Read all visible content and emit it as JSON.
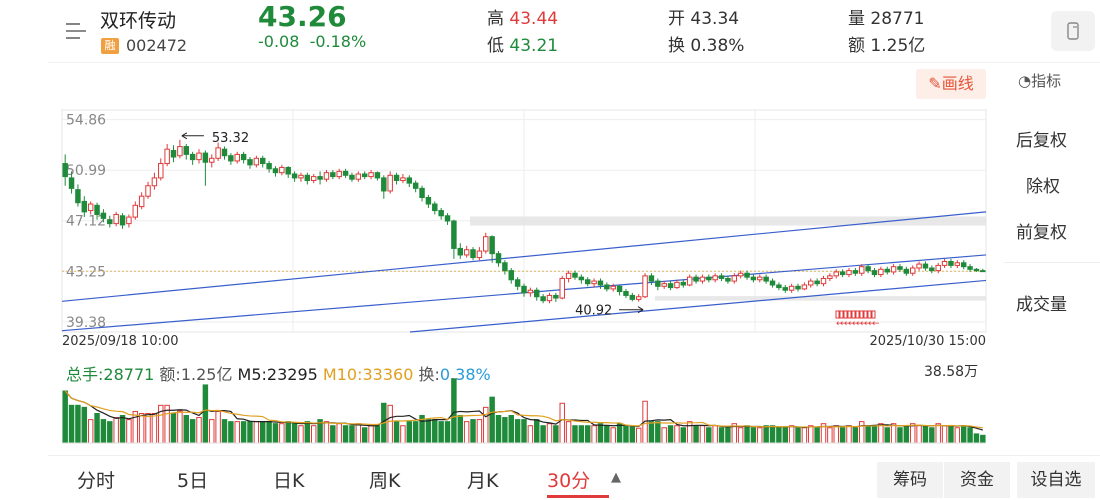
{
  "header": {
    "name": "双环传动",
    "badge": "融",
    "code": "002472",
    "price": "43.26",
    "change": "-0.08",
    "change_pct": "-0.18%",
    "high_label": "高",
    "high": "43.44",
    "low_label": "低",
    "low": "43.21",
    "open_label": "开",
    "open": "43.34",
    "turnover_label": "换",
    "turnover": "0.38%",
    "volume_label": "量",
    "volume": "28771",
    "amount_label": "额",
    "amount": "1.25亿"
  },
  "toolbar": {
    "draw_label": "画线",
    "indicator_label": "指标"
  },
  "side_menu": {
    "items": [
      "后复权",
      "除权",
      "前复权",
      "成交量"
    ],
    "active_index": 2
  },
  "volume_panel": {
    "total_label": "总手:",
    "total": "28771",
    "amount_label": "额:",
    "amount": "1.25亿",
    "m5_label": "M5:",
    "m5": "23295",
    "m10_label": "M10:",
    "m10": "33360",
    "turnover_label": "换:",
    "turnover": "0.38%",
    "max_label": "38.58万"
  },
  "tabs": [
    "分时",
    "5日",
    "日K",
    "周K",
    "月K",
    "30分"
  ],
  "active_tab": "30分",
  "footer_buttons": [
    "筹码",
    "资金",
    "设自选"
  ],
  "colors": {
    "up": "#e03a3a",
    "down": "#1f8a3a",
    "trend": "#3a5fcd",
    "m5": "#222222",
    "m10": "#e0a020"
  },
  "chart_data": {
    "type": "candlestick",
    "x_start_label": "2025/09/18 10:00",
    "x_end_label": "2025/10/30 15:00",
    "ylim": [
      38.6,
      55.6
    ],
    "y_ticks": [
      "54.86",
      "50.99",
      "47.12",
      "43.25",
      "39.38"
    ],
    "y_tick_values": [
      54.86,
      50.99,
      47.12,
      43.25,
      39.38
    ],
    "current_price_line": 43.25,
    "annotations": [
      {
        "label": "53.32",
        "index": 18,
        "value": 53.32,
        "arrow": "left"
      },
      {
        "label": "40.92",
        "index": 91,
        "value": 40.92,
        "arrow": "right"
      }
    ],
    "candles": [
      [
        51.5,
        50.5,
        52.2,
        49.8
      ],
      [
        50.4,
        49.6,
        50.9,
        49.2
      ],
      [
        49.5,
        48.5,
        49.9,
        48.2
      ],
      [
        48.6,
        47.8,
        49.0,
        47.4
      ],
      [
        47.9,
        48.4,
        48.6,
        47.6
      ],
      [
        48.3,
        47.6,
        48.5,
        47.2
      ],
      [
        47.7,
        47.3,
        48.0,
        47.0
      ],
      [
        47.2,
        46.9,
        47.5,
        46.6
      ],
      [
        46.9,
        47.6,
        47.8,
        46.7
      ],
      [
        47.5,
        46.8,
        47.7,
        46.5
      ],
      [
        46.9,
        47.4,
        47.6,
        46.6
      ],
      [
        47.4,
        48.3,
        48.6,
        47.2
      ],
      [
        48.2,
        49.0,
        49.3,
        48.0
      ],
      [
        49.0,
        49.8,
        50.1,
        48.8
      ],
      [
        49.8,
        50.4,
        50.8,
        49.5
      ],
      [
        50.4,
        51.5,
        51.9,
        50.2
      ],
      [
        51.5,
        52.6,
        53.0,
        51.3
      ],
      [
        52.5,
        52.0,
        52.9,
        51.6
      ],
      [
        52.1,
        52.8,
        53.32,
        51.9
      ],
      [
        52.8,
        52.2,
        53.0,
        51.8
      ],
      [
        52.2,
        51.8,
        52.4,
        51.4
      ],
      [
        51.8,
        52.3,
        52.6,
        51.5
      ],
      [
        52.3,
        51.6,
        52.5,
        49.8
      ],
      [
        51.6,
        51.9,
        52.2,
        51.2
      ],
      [
        51.9,
        52.7,
        53.1,
        51.7
      ],
      [
        52.6,
        52.1,
        52.8,
        51.8
      ],
      [
        52.1,
        51.7,
        52.3,
        51.4
      ],
      [
        51.7,
        52.2,
        52.4,
        51.5
      ],
      [
        52.2,
        51.8,
        52.4,
        51.5
      ],
      [
        51.8,
        51.4,
        52.0,
        51.1
      ],
      [
        51.4,
        51.9,
        52.1,
        51.2
      ],
      [
        51.9,
        51.5,
        52.1,
        51.2
      ],
      [
        51.5,
        51.1,
        51.7,
        50.8
      ],
      [
        51.1,
        50.8,
        51.3,
        50.5
      ],
      [
        50.8,
        51.2,
        51.4,
        50.6
      ],
      [
        51.2,
        50.7,
        51.3,
        50.4
      ],
      [
        50.7,
        50.4,
        50.9,
        50.1
      ],
      [
        50.4,
        50.6,
        50.8,
        50.1
      ],
      [
        50.6,
        50.2,
        50.8,
        49.9
      ],
      [
        50.2,
        50.5,
        50.7,
        50.0
      ],
      [
        50.5,
        50.3,
        50.9,
        49.9
      ],
      [
        50.3,
        50.8,
        51.0,
        50.1
      ],
      [
        50.8,
        50.5,
        51.0,
        50.3
      ],
      [
        50.5,
        50.9,
        51.1,
        50.3
      ],
      [
        50.9,
        50.6,
        51.1,
        50.4
      ],
      [
        50.6,
        50.3,
        50.8,
        50.1
      ],
      [
        50.3,
        50.7,
        50.9,
        50.1
      ],
      [
        50.7,
        50.5,
        50.9,
        50.3
      ],
      [
        50.5,
        50.8,
        51.0,
        50.3
      ],
      [
        50.8,
        50.4,
        50.9,
        50.2
      ],
      [
        50.4,
        49.4,
        50.6,
        48.8
      ],
      [
        49.4,
        50.6,
        50.9,
        49.2
      ],
      [
        50.6,
        50.2,
        50.8,
        49.9
      ],
      [
        50.2,
        50.4,
        50.7,
        50.0
      ],
      [
        50.4,
        50.0,
        50.6,
        49.7
      ],
      [
        50.0,
        49.6,
        50.2,
        49.3
      ],
      [
        49.6,
        48.9,
        49.8,
        48.6
      ],
      [
        48.9,
        48.4,
        49.1,
        48.1
      ],
      [
        48.4,
        47.9,
        48.6,
        47.6
      ],
      [
        47.9,
        47.5,
        48.1,
        47.2
      ],
      [
        47.5,
        47.1,
        47.7,
        46.8
      ],
      [
        47.1,
        45.0,
        47.2,
        44.2
      ],
      [
        45.0,
        44.5,
        45.4,
        44.2
      ],
      [
        44.5,
        44.9,
        45.2,
        44.3
      ],
      [
        44.9,
        44.3,
        45.1,
        44.1
      ],
      [
        44.3,
        44.8,
        45.1,
        44.1
      ],
      [
        44.8,
        45.9,
        46.2,
        44.6
      ],
      [
        45.9,
        44.6,
        46.0,
        43.9
      ],
      [
        44.6,
        43.9,
        44.8,
        43.6
      ],
      [
        43.9,
        43.3,
        44.1,
        43.0
      ],
      [
        43.3,
        42.6,
        43.5,
        42.3
      ],
      [
        42.6,
        42.1,
        42.8,
        41.8
      ],
      [
        42.1,
        41.6,
        42.3,
        41.3
      ],
      [
        41.6,
        41.8,
        42.0,
        41.3
      ],
      [
        41.8,
        41.3,
        42.0,
        41.0
      ],
      [
        41.3,
        41.0,
        41.5,
        40.8
      ],
      [
        41.0,
        41.4,
        41.6,
        40.8
      ],
      [
        41.4,
        41.2,
        41.6,
        40.9
      ],
      [
        41.2,
        42.7,
        42.9,
        41.1
      ],
      [
        42.7,
        43.1,
        43.3,
        42.4
      ],
      [
        43.1,
        42.8,
        43.3,
        42.6
      ],
      [
        42.8,
        42.6,
        43.0,
        42.3
      ],
      [
        42.6,
        42.3,
        42.8,
        42.1
      ],
      [
        42.3,
        42.5,
        42.7,
        42.0
      ],
      [
        42.5,
        42.2,
        42.7,
        41.9
      ],
      [
        42.2,
        41.9,
        42.4,
        41.7
      ],
      [
        41.9,
        42.1,
        42.3,
        41.7
      ],
      [
        42.1,
        41.7,
        42.2,
        41.4
      ],
      [
        41.7,
        41.4,
        41.9,
        41.2
      ],
      [
        41.4,
        41.1,
        41.6,
        40.95
      ],
      [
        41.1,
        41.3,
        41.5,
        40.92
      ],
      [
        41.3,
        42.9,
        43.1,
        41.2
      ],
      [
        42.9,
        42.5,
        43.1,
        42.2
      ],
      [
        42.5,
        42.1,
        42.7,
        41.8
      ],
      [
        42.1,
        42.3,
        42.5,
        41.9
      ],
      [
        42.3,
        42.0,
        42.5,
        41.8
      ],
      [
        42.0,
        42.4,
        42.6,
        41.9
      ],
      [
        42.4,
        42.2,
        42.6,
        42.0
      ],
      [
        42.2,
        42.8,
        43.0,
        42.1
      ],
      [
        42.8,
        42.5,
        43.0,
        42.3
      ],
      [
        42.5,
        42.8,
        43.0,
        42.3
      ],
      [
        42.8,
        42.6,
        43.0,
        42.4
      ],
      [
        42.6,
        42.9,
        43.1,
        42.4
      ],
      [
        42.9,
        42.7,
        43.1,
        42.5
      ],
      [
        42.7,
        42.5,
        42.9,
        42.3
      ],
      [
        42.5,
        42.9,
        43.1,
        42.3
      ],
      [
        42.9,
        43.1,
        43.3,
        42.7
      ],
      [
        43.1,
        42.8,
        43.3,
        42.6
      ],
      [
        42.8,
        42.6,
        43.0,
        42.4
      ],
      [
        42.6,
        42.8,
        43.0,
        42.4
      ],
      [
        42.8,
        42.5,
        43.0,
        42.3
      ],
      [
        42.5,
        42.2,
        42.7,
        42.0
      ],
      [
        42.2,
        42.0,
        42.4,
        41.8
      ],
      [
        42.0,
        41.8,
        42.2,
        41.6
      ],
      [
        41.8,
        42.1,
        42.3,
        41.6
      ],
      [
        42.1,
        41.9,
        42.3,
        41.7
      ],
      [
        41.9,
        42.2,
        42.4,
        41.8
      ],
      [
        42.2,
        42.5,
        42.7,
        42.0
      ],
      [
        42.5,
        42.3,
        42.7,
        42.1
      ],
      [
        42.3,
        42.7,
        42.9,
        42.1
      ],
      [
        42.7,
        42.9,
        43.1,
        42.5
      ],
      [
        42.9,
        43.2,
        43.4,
        42.7
      ],
      [
        43.2,
        43.0,
        43.4,
        42.8
      ],
      [
        43.0,
        43.3,
        43.5,
        42.8
      ],
      [
        43.3,
        43.1,
        43.5,
        42.9
      ],
      [
        43.1,
        43.6,
        43.8,
        42.9
      ],
      [
        43.6,
        43.3,
        43.8,
        43.1
      ],
      [
        43.3,
        43.0,
        43.5,
        42.8
      ],
      [
        43.0,
        43.4,
        43.6,
        42.8
      ],
      [
        43.4,
        43.2,
        43.6,
        43.0
      ],
      [
        43.2,
        43.6,
        43.8,
        43.0
      ],
      [
        43.6,
        43.4,
        43.8,
        43.2
      ],
      [
        43.4,
        43.1,
        43.6,
        42.9
      ],
      [
        43.1,
        43.5,
        43.7,
        42.9
      ],
      [
        43.5,
        43.8,
        44.0,
        43.3
      ],
      [
        43.8,
        43.5,
        44.0,
        43.3
      ],
      [
        43.5,
        43.3,
        43.7,
        43.1
      ],
      [
        43.3,
        43.7,
        43.9,
        43.1
      ],
      [
        43.7,
        44.0,
        44.2,
        43.5
      ],
      [
        44.0,
        43.7,
        44.2,
        43.5
      ],
      [
        43.7,
        43.9,
        44.1,
        43.5
      ],
      [
        43.9,
        43.6,
        44.1,
        43.4
      ],
      [
        43.6,
        43.4,
        43.8,
        43.2
      ],
      [
        43.4,
        43.3,
        43.5,
        43.2
      ],
      [
        43.3,
        43.26,
        43.44,
        43.21
      ]
    ]
  }
}
